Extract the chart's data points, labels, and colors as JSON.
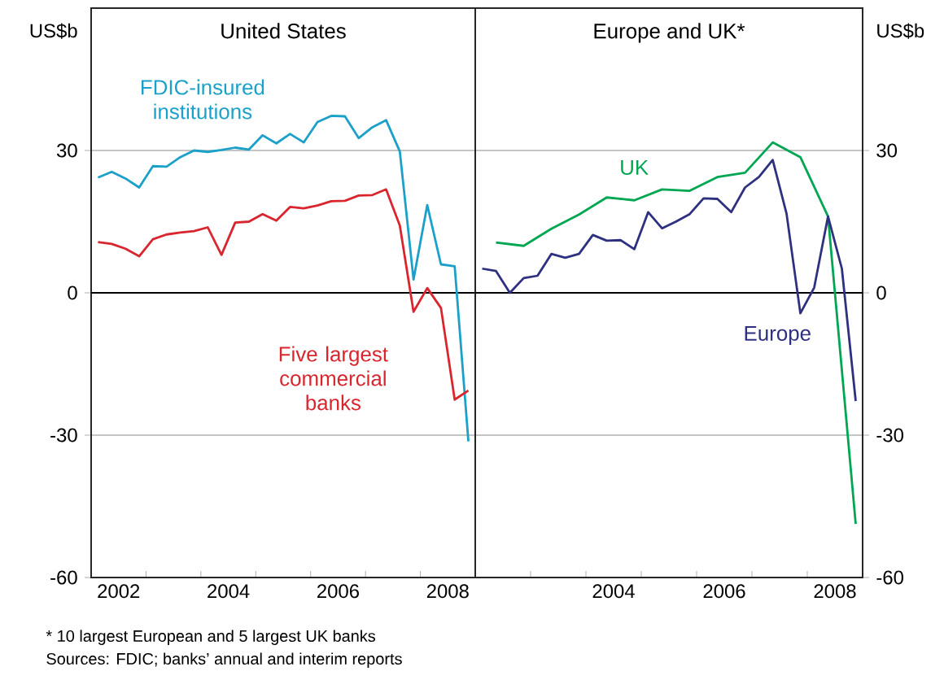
{
  "chart_data": [
    {
      "type": "line",
      "title": "United States",
      "ylabel": "US$b",
      "xlim": [
        2002,
        2009
      ],
      "ylim": [
        -60,
        60
      ],
      "xticks": [
        {
          "value": 2002.5,
          "label": "2002"
        },
        {
          "value": 2003,
          "label": null
        },
        {
          "value": 2004,
          "label": null
        },
        {
          "value": 2004.5,
          "label": "2004"
        },
        {
          "value": 2005,
          "label": null
        },
        {
          "value": 2006,
          "label": null
        },
        {
          "value": 2006.5,
          "label": "2006"
        },
        {
          "value": 2007,
          "label": null
        },
        {
          "value": 2008,
          "label": null
        },
        {
          "value": 2008.5,
          "label": "2008"
        }
      ],
      "yticks": [
        -60,
        -30,
        0,
        30
      ],
      "grid": "y",
      "ref_lines": [
        {
          "axis": "y",
          "value": 0,
          "color": "#000000"
        }
      ],
      "x": [
        2002.125,
        2002.375,
        2002.625,
        2002.875,
        2003.125,
        2003.375,
        2003.625,
        2003.875,
        2004.125,
        2004.375,
        2004.625,
        2004.875,
        2005.125,
        2005.375,
        2005.625,
        2005.875,
        2006.125,
        2006.375,
        2006.625,
        2006.875,
        2007.125,
        2007.375,
        2007.625,
        2007.875,
        2008.125,
        2008.375,
        2008.625,
        2008.875
      ],
      "series": [
        {
          "name": "FDIC-insured institutions",
          "color": "#1ba1c9",
          "values": [
            24.3,
            25.5,
            24.1,
            22.2,
            26.7,
            26.6,
            28.6,
            30.0,
            29.7,
            30.1,
            30.6,
            30.2,
            33.2,
            31.5,
            33.5,
            31.7,
            36.0,
            37.3,
            37.2,
            32.6,
            34.9,
            36.4,
            29.8,
            2.8,
            18.5,
            6.0,
            5.6,
            -31.3
          ]
        },
        {
          "name": "Five largest commercial banks",
          "color": "#d9262e",
          "values": [
            10.7,
            10.3,
            9.3,
            7.7,
            11.3,
            12.3,
            12.7,
            13.0,
            13.8,
            8.0,
            14.8,
            15.0,
            16.6,
            15.2,
            18.1,
            17.8,
            18.4,
            19.3,
            19.4,
            20.5,
            20.6,
            21.8,
            14.2,
            -4.0,
            1.0,
            -3.2,
            -22.5,
            -20.6
          ]
        }
      ],
      "annotations": [
        "*  10 largest European and 5 largest UK banks",
        "Sources: FDIC; banks’ annual and interim reports"
      ]
    },
    {
      "type": "line",
      "title": "Europe and UK*",
      "y2label": "US$b",
      "xlim": [
        2002,
        2009
      ],
      "y2lim": [
        -60,
        60
      ],
      "xticks": [
        {
          "value": 2003,
          "label": null
        },
        {
          "value": 2004,
          "label": null
        },
        {
          "value": 2004.5,
          "label": "2004"
        },
        {
          "value": 2005,
          "label": null
        },
        {
          "value": 2006,
          "label": null
        },
        {
          "value": 2006.5,
          "label": "2006"
        },
        {
          "value": 2007,
          "label": null
        },
        {
          "value": 2008,
          "label": null
        },
        {
          "value": 2008.5,
          "label": "2008"
        }
      ],
      "y2ticks": [
        -60,
        -30,
        0,
        30
      ],
      "grid": "y",
      "ref_lines": [
        {
          "axis": "y2",
          "value": 0,
          "color": "#000000"
        }
      ],
      "series": [
        {
          "name": "UK",
          "color": "#00a651",
          "axis": "y2",
          "x": [
            2002.375,
            2002.875,
            2003.375,
            2003.875,
            2004.375,
            2004.875,
            2005.375,
            2005.875,
            2006.375,
            2006.875,
            2007.375,
            2007.875,
            2008.375,
            2008.875
          ],
          "values": [
            10.6,
            9.9,
            13.5,
            16.5,
            20.1,
            19.5,
            21.8,
            21.5,
            24.4,
            25.3,
            31.7,
            28.6,
            16.1,
            -48.7
          ]
        },
        {
          "name": "Europe",
          "color": "#2e3080",
          "axis": "y2",
          "x": [
            2002.125,
            2002.375,
            2002.625,
            2002.875,
            2003.125,
            2003.375,
            2003.625,
            2003.875,
            2004.125,
            2004.375,
            2004.625,
            2004.875,
            2005.125,
            2005.375,
            2005.625,
            2005.875,
            2006.125,
            2006.375,
            2006.625,
            2006.875,
            2007.125,
            2007.375,
            2007.625,
            2007.875,
            2008.125,
            2008.375,
            2008.625,
            2008.875
          ],
          "values": [
            5.1,
            4.6,
            0.0,
            3.1,
            3.6,
            8.2,
            7.4,
            8.2,
            12.2,
            11.0,
            11.1,
            9.2,
            17.0,
            13.6,
            15.0,
            16.6,
            19.9,
            19.8,
            17.0,
            22.2,
            24.4,
            28.0,
            16.7,
            -4.3,
            1.1,
            16.1,
            5.1,
            -22.8
          ]
        }
      ]
    }
  ]
}
